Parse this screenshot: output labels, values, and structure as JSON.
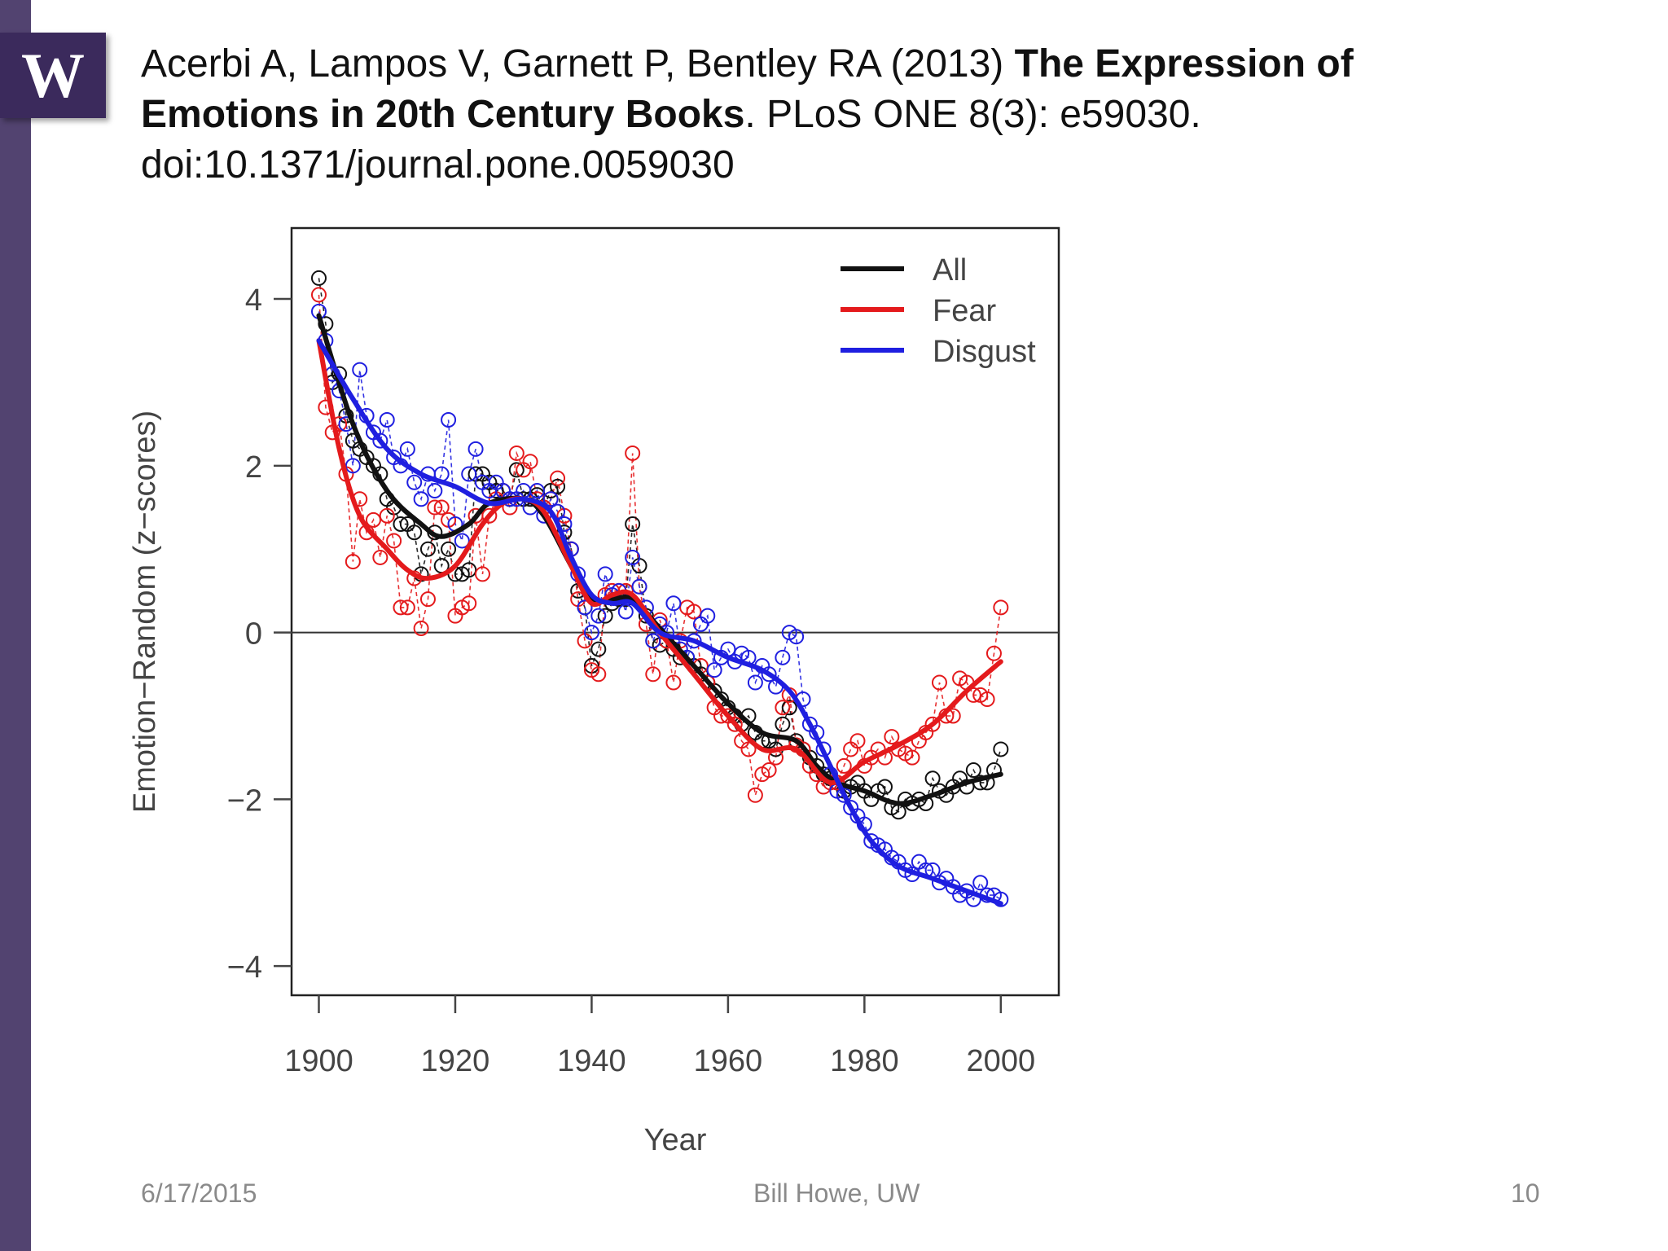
{
  "slide": {
    "logo_letter": "W",
    "citation": {
      "authors_year": " Acerbi A, Lampos V, Garnett P, Bentley RA (2013) ",
      "title": "The Expression of Emotions in 20th Century Books",
      "journal": ". PLoS ONE 8(3): e59030. doi:10.1371/journal.pone.0059030"
    },
    "footer": {
      "date": "6/17/2015",
      "author": "Bill Howe, UW",
      "page": "10"
    }
  },
  "colors": {
    "sidebar": "#524370",
    "logo": "#3b2a5c",
    "all": "#111111",
    "fear": "#e41a1c",
    "disgust": "#1f1fe0"
  },
  "chart_data": {
    "type": "line",
    "title": "",
    "xlabel": "Year",
    "ylabel": "Emotion−Random (z−scores)",
    "xlim": [
      1896,
      2008.5
    ],
    "ylim": [
      -4.35,
      4.85
    ],
    "xticks": [
      1900,
      1920,
      1940,
      1960,
      1980,
      2000
    ],
    "xtick_labels": [
      "1900",
      "1920",
      "1940",
      "1960",
      "1980",
      "2000"
    ],
    "yticks": [
      4,
      2,
      0,
      -2,
      -4
    ],
    "ytick_labels": [
      "4",
      "2",
      "0",
      "−2",
      "−4"
    ],
    "zero_line": true,
    "legend_position": "top-right",
    "series": [
      {
        "name": "All",
        "color": "#111111",
        "smooth_x": [
          1900,
          1905,
          1910,
          1915,
          1918,
          1922,
          1925,
          1930,
          1933,
          1937,
          1940,
          1943,
          1946,
          1950,
          1955,
          1960,
          1965,
          1970,
          1973,
          1976,
          1980,
          1985,
          1990,
          1995,
          2000
        ],
        "smooth_y": [
          3.8,
          2.5,
          1.7,
          1.3,
          1.15,
          1.3,
          1.55,
          1.6,
          1.4,
          0.8,
          0.4,
          0.4,
          0.4,
          0.05,
          -0.4,
          -0.85,
          -1.2,
          -1.3,
          -1.6,
          -1.8,
          -1.9,
          -2.05,
          -1.95,
          -1.8,
          -1.7
        ],
        "points_x": [
          1900,
          1901,
          1902,
          1903,
          1904,
          1905,
          1906,
          1907,
          1908,
          1909,
          1910,
          1911,
          1912,
          1913,
          1914,
          1915,
          1916,
          1917,
          1918,
          1919,
          1920,
          1921,
          1922,
          1923,
          1924,
          1925,
          1926,
          1927,
          1928,
          1929,
          1930,
          1931,
          1932,
          1933,
          1934,
          1935,
          1936,
          1937,
          1938,
          1939,
          1940,
          1941,
          1942,
          1943,
          1944,
          1945,
          1946,
          1947,
          1948,
          1949,
          1950,
          1951,
          1952,
          1953,
          1954,
          1955,
          1956,
          1957,
          1958,
          1959,
          1960,
          1961,
          1962,
          1963,
          1964,
          1965,
          1966,
          1967,
          1968,
          1969,
          1970,
          1971,
          1972,
          1973,
          1974,
          1975,
          1976,
          1977,
          1978,
          1979,
          1980,
          1981,
          1982,
          1983,
          1984,
          1985,
          1986,
          1987,
          1988,
          1989,
          1990,
          1991,
          1992,
          1993,
          1994,
          1995,
          1996,
          1997,
          1998,
          1999,
          2000
        ],
        "points_y": [
          4.25,
          3.7,
          3.0,
          3.1,
          2.6,
          2.3,
          2.2,
          2.1,
          2.0,
          1.9,
          1.6,
          1.5,
          1.3,
          1.3,
          1.2,
          0.7,
          1.0,
          1.2,
          0.8,
          1.0,
          0.7,
          0.7,
          0.75,
          1.9,
          1.9,
          1.8,
          1.7,
          1.7,
          1.6,
          1.95,
          1.6,
          1.6,
          1.65,
          1.5,
          1.7,
          1.75,
          1.2,
          1.0,
          0.5,
          0.3,
          -0.4,
          -0.2,
          0.2,
          0.35,
          0.4,
          0.4,
          1.3,
          0.8,
          0.2,
          -0.1,
          -0.15,
          -0.1,
          -0.2,
          -0.3,
          -0.3,
          -0.4,
          -0.5,
          -0.6,
          -0.7,
          -0.8,
          -0.9,
          -1.0,
          -1.1,
          -1.0,
          -1.2,
          -1.3,
          -1.3,
          -1.4,
          -1.1,
          -0.9,
          -1.3,
          -1.4,
          -1.5,
          -1.6,
          -1.7,
          -1.75,
          -1.8,
          -1.9,
          -1.85,
          -1.8,
          -1.9,
          -2.0,
          -1.9,
          -1.85,
          -2.1,
          -2.15,
          -2.0,
          -2.05,
          -2.0,
          -2.05,
          -1.75,
          -1.9,
          -1.95,
          -1.85,
          -1.75,
          -1.85,
          -1.65,
          -1.8,
          -1.8,
          -1.65,
          -1.4
        ]
      },
      {
        "name": "Fear",
        "color": "#e41a1c",
        "smooth_x": [
          1900,
          1903,
          1906,
          1910,
          1913,
          1916,
          1920,
          1924,
          1927,
          1930,
          1933,
          1937,
          1940,
          1943,
          1946,
          1950,
          1955,
          1960,
          1965,
          1970,
          1975,
          1980,
          1985,
          1990,
          1995,
          2000
        ],
        "smooth_y": [
          3.5,
          2.2,
          1.4,
          1.0,
          0.75,
          0.65,
          0.8,
          1.3,
          1.55,
          1.6,
          1.45,
          0.8,
          0.35,
          0.45,
          0.45,
          0.0,
          -0.5,
          -1.0,
          -1.4,
          -1.4,
          -1.8,
          -1.55,
          -1.35,
          -1.1,
          -0.7,
          -0.35
        ],
        "points_x": [
          1900,
          1901,
          1902,
          1903,
          1904,
          1905,
          1906,
          1907,
          1908,
          1909,
          1910,
          1911,
          1912,
          1913,
          1914,
          1915,
          1916,
          1917,
          1918,
          1919,
          1920,
          1921,
          1922,
          1923,
          1924,
          1925,
          1926,
          1927,
          1928,
          1929,
          1930,
          1931,
          1932,
          1933,
          1934,
          1935,
          1936,
          1937,
          1938,
          1939,
          1940,
          1941,
          1942,
          1943,
          1944,
          1945,
          1946,
          1947,
          1948,
          1949,
          1950,
          1951,
          1952,
          1953,
          1954,
          1955,
          1956,
          1957,
          1958,
          1959,
          1960,
          1961,
          1962,
          1963,
          1964,
          1965,
          1966,
          1967,
          1968,
          1969,
          1970,
          1971,
          1972,
          1973,
          1974,
          1975,
          1976,
          1977,
          1978,
          1979,
          1980,
          1981,
          1982,
          1983,
          1984,
          1985,
          1986,
          1987,
          1988,
          1989,
          1990,
          1991,
          1992,
          1993,
          1994,
          1995,
          1996,
          1997,
          1998,
          1999,
          2000
        ],
        "points_y": [
          4.05,
          2.7,
          2.4,
          2.5,
          1.9,
          0.85,
          1.6,
          1.2,
          1.35,
          0.9,
          1.4,
          1.1,
          0.3,
          0.3,
          0.65,
          0.05,
          0.4,
          1.5,
          1.5,
          1.35,
          0.2,
          0.3,
          0.35,
          1.4,
          0.7,
          1.4,
          1.6,
          1.7,
          1.5,
          2.15,
          1.95,
          2.05,
          1.6,
          1.5,
          1.6,
          1.85,
          1.4,
          1.0,
          0.4,
          -0.1,
          -0.45,
          -0.5,
          0.45,
          0.5,
          0.5,
          0.5,
          2.15,
          0.55,
          0.1,
          -0.5,
          0.15,
          -0.1,
          -0.6,
          -0.1,
          0.3,
          0.25,
          -0.4,
          -0.6,
          -0.9,
          -1.0,
          -1.0,
          -1.1,
          -1.3,
          -1.4,
          -1.95,
          -1.7,
          -1.65,
          -1.5,
          -0.9,
          -0.75,
          -1.35,
          -1.4,
          -1.6,
          -1.7,
          -1.85,
          -1.8,
          -1.8,
          -1.6,
          -1.4,
          -1.3,
          -1.6,
          -1.5,
          -1.4,
          -1.5,
          -1.25,
          -1.4,
          -1.45,
          -1.5,
          -1.3,
          -1.2,
          -1.1,
          -0.6,
          -1.0,
          -1.0,
          -0.55,
          -0.6,
          -0.75,
          -0.75,
          -0.8,
          -0.25,
          0.3
        ]
      },
      {
        "name": "Disgust",
        "color": "#1f1fe0",
        "smooth_x": [
          1900,
          1905,
          1910,
          1915,
          1920,
          1925,
          1930,
          1934,
          1937,
          1940,
          1943,
          1946,
          1950,
          1955,
          1960,
          1965,
          1969,
          1972,
          1975,
          1978,
          1981,
          1985,
          1990,
          1995,
          2000
        ],
        "smooth_y": [
          3.5,
          2.8,
          2.2,
          1.9,
          1.75,
          1.55,
          1.6,
          1.45,
          0.9,
          0.45,
          0.35,
          0.35,
          0.0,
          -0.1,
          -0.3,
          -0.45,
          -0.7,
          -1.1,
          -1.6,
          -2.1,
          -2.5,
          -2.8,
          -2.95,
          -3.1,
          -3.25
        ],
        "points_x": [
          1900,
          1901,
          1902,
          1903,
          1904,
          1905,
          1906,
          1907,
          1908,
          1909,
          1910,
          1911,
          1912,
          1913,
          1914,
          1915,
          1916,
          1917,
          1918,
          1919,
          1920,
          1921,
          1922,
          1923,
          1924,
          1925,
          1926,
          1927,
          1928,
          1929,
          1930,
          1931,
          1932,
          1933,
          1934,
          1935,
          1936,
          1937,
          1938,
          1939,
          1940,
          1941,
          1942,
          1943,
          1944,
          1945,
          1946,
          1947,
          1948,
          1949,
          1950,
          1951,
          1952,
          1953,
          1954,
          1955,
          1956,
          1957,
          1958,
          1959,
          1960,
          1961,
          1962,
          1963,
          1964,
          1965,
          1966,
          1967,
          1968,
          1969,
          1970,
          1971,
          1972,
          1973,
          1974,
          1975,
          1976,
          1977,
          1978,
          1979,
          1980,
          1981,
          1982,
          1983,
          1984,
          1985,
          1986,
          1987,
          1988,
          1989,
          1990,
          1991,
          1992,
          1993,
          1994,
          1995,
          1996,
          1997,
          1998,
          1999,
          2000
        ],
        "points_y": [
          3.85,
          3.5,
          3.1,
          2.9,
          2.5,
          2.0,
          3.15,
          2.6,
          2.4,
          2.3,
          2.55,
          2.1,
          2.0,
          2.2,
          1.8,
          1.6,
          1.9,
          1.7,
          1.9,
          2.55,
          1.3,
          1.1,
          1.9,
          2.2,
          1.8,
          1.7,
          1.8,
          1.7,
          1.6,
          1.6,
          1.7,
          1.5,
          1.7,
          1.4,
          1.6,
          1.45,
          1.3,
          1.0,
          0.7,
          0.3,
          0.0,
          0.2,
          0.7,
          0.45,
          0.5,
          0.25,
          0.9,
          0.55,
          0.3,
          -0.1,
          0.1,
          0.0,
          0.35,
          -0.2,
          -0.3,
          -0.1,
          0.1,
          0.2,
          -0.45,
          -0.3,
          -0.2,
          -0.35,
          -0.25,
          -0.3,
          -0.6,
          -0.4,
          -0.5,
          -0.65,
          -0.3,
          0.0,
          -0.05,
          -0.8,
          -1.1,
          -1.2,
          -1.4,
          -1.7,
          -1.9,
          -1.95,
          -2.1,
          -2.2,
          -2.3,
          -2.5,
          -2.55,
          -2.6,
          -2.7,
          -2.75,
          -2.85,
          -2.9,
          -2.75,
          -2.85,
          -2.85,
          -3.0,
          -2.95,
          -3.05,
          -3.15,
          -3.1,
          -3.2,
          -3.0,
          -3.15,
          -3.15,
          -3.2
        ]
      }
    ]
  }
}
